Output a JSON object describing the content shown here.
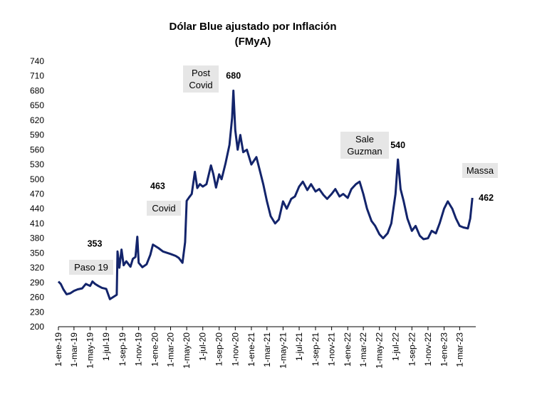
{
  "chart_data": {
    "type": "line",
    "title": "Dólar Blue ajustado por Inflación",
    "subtitle": "(FMyA)",
    "xlabel": "",
    "ylabel": "",
    "ylim": [
      200,
      740
    ],
    "y_ticks": [
      200,
      230,
      260,
      290,
      320,
      350,
      380,
      410,
      440,
      470,
      500,
      530,
      560,
      590,
      620,
      650,
      680,
      710,
      740
    ],
    "x_tick_labels": [
      "1-ene-19",
      "1-mar-19",
      "1-may-19",
      "1-jul-19",
      "1-sep-19",
      "1-nov-19",
      "1-ene-20",
      "1-mar-20",
      "1-may-20",
      "1-jul-20",
      "1-sep-20",
      "1-nov-20",
      "1-ene-21",
      "1-mar-21",
      "1-may-21",
      "1-jul-21",
      "1-sep-21",
      "1-nov-21",
      "1-ene-22",
      "1-mar-22",
      "1-may-22",
      "1-jul-22",
      "1-sep-22",
      "1-nov-22",
      "1-ene-23",
      "1-mar-23"
    ],
    "x_range": [
      "2019-01-01",
      "2023-05-01"
    ],
    "grid": false,
    "line_color": "#13246b",
    "series": [
      {
        "name": "",
        "points": [
          [
            "2019-01-01",
            292
          ],
          [
            "2019-01-10",
            287
          ],
          [
            "2019-01-20",
            276
          ],
          [
            "2019-02-01",
            266
          ],
          [
            "2019-02-15",
            268
          ],
          [
            "2019-03-01",
            273
          ],
          [
            "2019-03-15",
            276
          ],
          [
            "2019-04-01",
            278
          ],
          [
            "2019-04-15",
            287
          ],
          [
            "2019-05-01",
            283
          ],
          [
            "2019-05-10",
            292
          ],
          [
            "2019-05-20",
            287
          ],
          [
            "2019-06-01",
            283
          ],
          [
            "2019-06-15",
            279
          ],
          [
            "2019-07-01",
            277
          ],
          [
            "2019-07-15",
            256
          ],
          [
            "2019-08-01",
            262
          ],
          [
            "2019-08-10",
            265
          ],
          [
            "2019-08-13",
            353
          ],
          [
            "2019-08-20",
            320
          ],
          [
            "2019-08-28",
            357
          ],
          [
            "2019-09-05",
            325
          ],
          [
            "2019-09-15",
            333
          ],
          [
            "2019-10-01",
            322
          ],
          [
            "2019-10-10",
            338
          ],
          [
            "2019-10-20",
            342
          ],
          [
            "2019-10-27",
            383
          ],
          [
            "2019-11-01",
            330
          ],
          [
            "2019-11-15",
            321
          ],
          [
            "2019-12-01",
            327
          ],
          [
            "2019-12-15",
            346
          ],
          [
            "2019-12-25",
            367
          ],
          [
            "2020-01-15",
            360
          ],
          [
            "2020-02-01",
            353
          ],
          [
            "2020-03-01",
            348
          ],
          [
            "2020-03-20",
            344
          ],
          [
            "2020-04-01",
            340
          ],
          [
            "2020-04-15",
            330
          ],
          [
            "2020-04-25",
            372
          ],
          [
            "2020-05-01",
            456
          ],
          [
            "2020-05-10",
            463
          ],
          [
            "2020-05-20",
            470
          ],
          [
            "2020-06-01",
            515
          ],
          [
            "2020-06-10",
            482
          ],
          [
            "2020-06-20",
            490
          ],
          [
            "2020-07-01",
            485
          ],
          [
            "2020-07-15",
            490
          ],
          [
            "2020-08-01",
            528
          ],
          [
            "2020-08-10",
            510
          ],
          [
            "2020-08-20",
            483
          ],
          [
            "2020-09-01",
            510
          ],
          [
            "2020-09-10",
            500
          ],
          [
            "2020-09-25",
            532
          ],
          [
            "2020-10-10",
            570
          ],
          [
            "2020-10-20",
            625
          ],
          [
            "2020-10-25",
            680
          ],
          [
            "2020-11-01",
            600
          ],
          [
            "2020-11-10",
            560
          ],
          [
            "2020-11-20",
            590
          ],
          [
            "2020-12-01",
            555
          ],
          [
            "2020-12-15",
            560
          ],
          [
            "2021-01-01",
            530
          ],
          [
            "2021-01-20",
            545
          ],
          [
            "2021-02-01",
            520
          ],
          [
            "2021-02-15",
            490
          ],
          [
            "2021-03-01",
            455
          ],
          [
            "2021-03-15",
            425
          ],
          [
            "2021-04-01",
            410
          ],
          [
            "2021-04-15",
            418
          ],
          [
            "2021-05-01",
            455
          ],
          [
            "2021-05-15",
            440
          ],
          [
            "2021-06-01",
            460
          ],
          [
            "2021-06-15",
            465
          ],
          [
            "2021-07-01",
            485
          ],
          [
            "2021-07-15",
            495
          ],
          [
            "2021-08-01",
            478
          ],
          [
            "2021-08-15",
            490
          ],
          [
            "2021-09-01",
            475
          ],
          [
            "2021-09-15",
            480
          ],
          [
            "2021-10-01",
            468
          ],
          [
            "2021-10-15",
            460
          ],
          [
            "2021-11-01",
            470
          ],
          [
            "2021-11-15",
            480
          ],
          [
            "2021-12-01",
            465
          ],
          [
            "2021-12-15",
            470
          ],
          [
            "2022-01-01",
            462
          ],
          [
            "2022-01-15",
            480
          ],
          [
            "2022-02-01",
            490
          ],
          [
            "2022-02-15",
            495
          ],
          [
            "2022-03-01",
            470
          ],
          [
            "2022-03-15",
            440
          ],
          [
            "2022-04-01",
            415
          ],
          [
            "2022-04-15",
            405
          ],
          [
            "2022-05-01",
            388
          ],
          [
            "2022-05-15",
            380
          ],
          [
            "2022-06-01",
            390
          ],
          [
            "2022-06-15",
            410
          ],
          [
            "2022-07-01",
            470
          ],
          [
            "2022-07-10",
            540
          ],
          [
            "2022-07-20",
            480
          ],
          [
            "2022-08-01",
            455
          ],
          [
            "2022-08-15",
            420
          ],
          [
            "2022-09-01",
            395
          ],
          [
            "2022-09-15",
            405
          ],
          [
            "2022-10-01",
            385
          ],
          [
            "2022-10-15",
            378
          ],
          [
            "2022-11-01",
            380
          ],
          [
            "2022-11-15",
            395
          ],
          [
            "2022-12-01",
            390
          ],
          [
            "2022-12-15",
            410
          ],
          [
            "2023-01-01",
            440
          ],
          [
            "2023-01-15",
            455
          ],
          [
            "2023-02-01",
            440
          ],
          [
            "2023-02-15",
            420
          ],
          [
            "2023-03-01",
            405
          ],
          [
            "2023-03-15",
            402
          ],
          [
            "2023-04-01",
            400
          ],
          [
            "2023-04-10",
            420
          ],
          [
            "2023-04-18",
            462
          ]
        ]
      }
    ],
    "annotations": {
      "values": [
        {
          "label": "353",
          "x": "2019-08-13",
          "y": 353
        },
        {
          "label": "463",
          "x": "2020-05-10",
          "y": 463
        },
        {
          "label": "680",
          "x": "2020-10-25",
          "y": 680
        },
        {
          "label": "540",
          "x": "2022-07-10",
          "y": 540
        },
        {
          "label": "462",
          "x": "2023-04-18",
          "y": 462
        }
      ],
      "boxes": [
        {
          "lines": [
            "Paso 19"
          ]
        },
        {
          "lines": [
            "Covid"
          ]
        },
        {
          "lines": [
            "Post",
            "Covid"
          ]
        },
        {
          "lines": [
            "Sale",
            "Guzman"
          ]
        },
        {
          "lines": [
            "Massa"
          ]
        }
      ]
    }
  }
}
